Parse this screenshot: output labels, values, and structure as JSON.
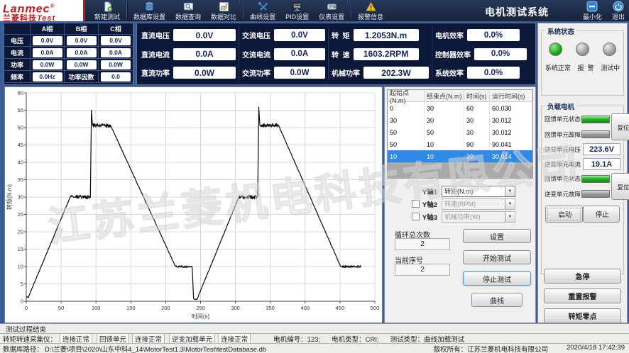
{
  "header": {
    "logo": {
      "line1": "Lanmec",
      "reg": "®",
      "line2": "兰菱科技",
      "line2_suffix": "Test"
    },
    "title": "电机测试系统",
    "toolbar": [
      {
        "id": "new-test",
        "label": "新建测试",
        "icon": "new-doc-icon",
        "sep_after": true
      },
      {
        "id": "db-settings",
        "label": "数据库设置",
        "icon": "database-icon",
        "sep_after": false
      },
      {
        "id": "data-query",
        "label": "数据查询",
        "icon": "search-icon",
        "sep_after": false
      },
      {
        "id": "data-compare",
        "label": "数据对比",
        "icon": "chart-compare-icon",
        "sep_after": true
      },
      {
        "id": "curve-settings",
        "label": "曲线设置",
        "icon": "tools-icon",
        "sep_after": false
      },
      {
        "id": "pid-settings",
        "label": "PID设置",
        "icon": "monitor-icon",
        "sep_after": false
      },
      {
        "id": "meter-settings",
        "label": "仪表设置",
        "icon": "instrument-icon",
        "sep_after": true
      },
      {
        "id": "alarm-info",
        "label": "报警信息",
        "icon": "warning-icon",
        "sep_after": false
      }
    ],
    "window_buttons": [
      {
        "id": "minimize",
        "label": "最小化",
        "icon": "minimize-icon"
      },
      {
        "id": "exit",
        "label": "退出",
        "icon": "power-icon"
      }
    ]
  },
  "phase_table": {
    "col_headers": [
      "A相",
      "B相",
      "C相"
    ],
    "rows": [
      {
        "label": "电压",
        "values": [
          "0.0V",
          "0.0V",
          "0.0V"
        ]
      },
      {
        "label": "电流",
        "values": [
          "0.0A",
          "0.0A",
          "0.0A"
        ]
      },
      {
        "label": "功率",
        "values": [
          "0.0W",
          "0.0W",
          "0.0W"
        ]
      }
    ],
    "last_row": {
      "label": "频率",
      "value": "0.0Hz",
      "label2": "功率因数",
      "value2": "0.0"
    }
  },
  "measurements": {
    "dc": [
      {
        "label": "直流电压",
        "value": "0.0V"
      },
      {
        "label": "直流电流",
        "value": "0.0A"
      },
      {
        "label": "直流功率",
        "value": "0.0W"
      }
    ],
    "ac": [
      {
        "label": "交流电压",
        "value": "0.0V"
      },
      {
        "label": "交流电流",
        "value": "0.0A"
      },
      {
        "label": "交流功率",
        "value": "0.0W"
      }
    ],
    "mech": [
      {
        "label": "转  矩",
        "value": "1.2053N.m"
      },
      {
        "label": "转  速",
        "value": "1603.2RPM"
      },
      {
        "label": "机械功率",
        "value": "202.3W"
      }
    ],
    "eff": [
      {
        "label": "电机效率",
        "value": "0.0%"
      },
      {
        "label": "控制器效率",
        "value": "0.0%"
      },
      {
        "label": "系统效率",
        "value": "0.0%"
      }
    ]
  },
  "chart_data": {
    "type": "line",
    "xlabel": "时间(s)",
    "ylabel": "转矩(N.m)",
    "xlim": [
      0,
      500
    ],
    "ylim": [
      0,
      60
    ],
    "xtick_step": 50,
    "ytick_step": 5,
    "grid": true,
    "line_color": "#0a0a0a",
    "series": [
      {
        "name": "转矩(N.m)",
        "breakpoints": [
          [
            0,
            1.2
          ],
          [
            3,
            1.2
          ],
          [
            63,
            30
          ],
          [
            92,
            30
          ],
          [
            93.5,
            55
          ],
          [
            95,
            50.6
          ],
          [
            121,
            50.6
          ],
          [
            214,
            10
          ],
          [
            238,
            10
          ],
          [
            240,
            0.6
          ],
          [
            245,
            0.6
          ],
          [
            305,
            30
          ],
          [
            332,
            30
          ],
          [
            333.5,
            56
          ],
          [
            335,
            50.6
          ],
          [
            362,
            50.6
          ],
          [
            451,
            10
          ],
          [
            480,
            10
          ]
        ]
      }
    ]
  },
  "sequence_table": {
    "headers": [
      "起始点(N.m)",
      "结束点(N.m)",
      "时间(s)",
      "运行时间(s)"
    ],
    "rows": [
      [
        "0",
        "30",
        "60",
        "60.030"
      ],
      [
        "30",
        "30",
        "30",
        "30.012"
      ],
      [
        "50",
        "50",
        "30",
        "30.012"
      ],
      [
        "50",
        "10",
        "90",
        "90.041"
      ],
      [
        "10",
        "10",
        "30",
        "30.014"
      ]
    ],
    "selected_index": 4
  },
  "axis_controls": [
    {
      "label": "Y轴1",
      "option": "转矩(N.m)",
      "has_checkbox": false,
      "checked": false,
      "enabled": true
    },
    {
      "label": "Y轴2",
      "option": "转速(RPM)",
      "has_checkbox": true,
      "checked": false,
      "enabled": false
    },
    {
      "label": "Y轴3",
      "option": "机械功率(W)",
      "has_checkbox": true,
      "checked": false,
      "enabled": false
    }
  ],
  "cycle": {
    "total_label": "循环总次数",
    "total_value": "2",
    "current_label": "当前序号",
    "current_value": "2"
  },
  "test_buttons": [
    {
      "id": "setup",
      "label": "设置",
      "focused": false
    },
    {
      "id": "start-test",
      "label": "开始测试",
      "focused": false
    },
    {
      "id": "stop-test",
      "label": "停止测试",
      "focused": true
    },
    {
      "id": "curve",
      "label": "曲线",
      "focused": false,
      "narrow": true
    }
  ],
  "system_status": {
    "title": "系统状态",
    "leds": [
      {
        "label": "系统正常",
        "on": true
      },
      {
        "label": "报  警",
        "on": false
      },
      {
        "label": "测试中",
        "on": false
      }
    ]
  },
  "load_motor": {
    "title": "负载电机",
    "sections": [
      {
        "type": "indicator-group",
        "reset_label": "复位",
        "rows": [
          {
            "label": "回馈单元状态",
            "state": "on"
          },
          {
            "label": "回馈单元故障",
            "state": "off"
          }
        ]
      },
      {
        "type": "value",
        "label": "逆变单元电压",
        "value": "223.6V"
      },
      {
        "type": "value",
        "label": "逆变单元电流",
        "value": "19.1A"
      },
      {
        "type": "indicator-group",
        "reset_label": "复位",
        "rows": [
          {
            "label": "回馈单元状态",
            "state": "on"
          },
          {
            "label": "逆变单元故障",
            "state": "off"
          }
        ]
      },
      {
        "type": "controls",
        "buttons": [
          {
            "id": "start",
            "label": "启动",
            "icon": "play-icon"
          },
          {
            "id": "stop",
            "label": "停止",
            "icon": "stop-icon"
          }
        ]
      }
    ]
  },
  "side_buttons": [
    {
      "id": "emergency-stop",
      "label": "急停"
    },
    {
      "id": "reset-alarm",
      "label": "重置报警"
    },
    {
      "id": "torque-zero",
      "label": "转矩零点"
    }
  ],
  "footer": {
    "process_status": "测试过程结束",
    "connections": [
      {
        "text": "转矩转速采集仪：",
        "boxed": false,
        "ml": 0
      },
      {
        "text": "连接正常",
        "boxed": true,
        "ml": 2
      },
      {
        "text": "回馈单元",
        "boxed": true,
        "ml": 4
      },
      {
        "text": "连接正常",
        "boxed": true,
        "ml": 2
      },
      {
        "text": "逆变加载单元",
        "boxed": true,
        "ml": 4
      },
      {
        "text": "连接正常",
        "boxed": true,
        "ml": 2
      },
      {
        "text": "电机编号：123;",
        "boxed": false,
        "ml": 30
      },
      {
        "text": "电机类型：CRI;",
        "boxed": false,
        "ml": 14
      },
      {
        "text": "测试类型：曲线加载测试",
        "boxed": false,
        "ml": 14
      }
    ],
    "db_path_label": "数据库路径：",
    "db_path": "D:\\兰菱\\项目\\2020\\山东中科4_14\\MotorTest1.3\\MotorTest\\testDatabase.db",
    "copyright": "版权所有：江苏兰菱机电科技有限公司",
    "datetime": "2020/4/18 17:42:39"
  },
  "watermark": "江苏兰菱机电科技有限公司"
}
